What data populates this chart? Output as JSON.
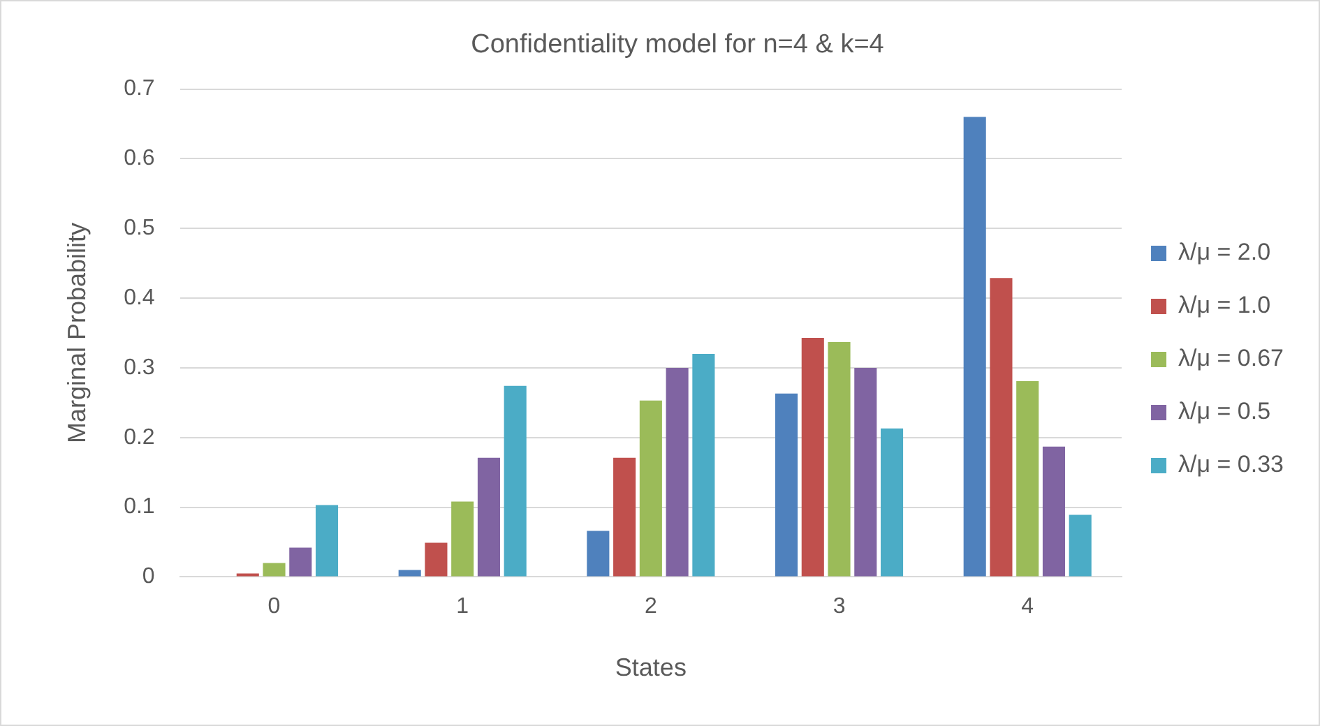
{
  "chart_data": {
    "type": "bar",
    "title": "Confidentiality model for n=4 & k=4",
    "xlabel": "States",
    "ylabel": "Marginal Probability",
    "categories": [
      "0",
      "1",
      "2",
      "3",
      "4"
    ],
    "series": [
      {
        "name": "λ/μ = 2.0",
        "color": "#4f81bd",
        "values": [
          0,
          0.01,
          0.066,
          0.263,
          0.66
        ]
      },
      {
        "name": "λ/μ = 1.0",
        "color": "#c0504d",
        "values": [
          0.005,
          0.049,
          0.171,
          0.343,
          0.429
        ]
      },
      {
        "name": "λ/μ = 0.67",
        "color": "#9bbb59",
        "values": [
          0.02,
          0.108,
          0.253,
          0.337,
          0.281
        ]
      },
      {
        "name": "λ/μ = 0.5",
        "color": "#8064a2",
        "values": [
          0.042,
          0.171,
          0.3,
          0.3,
          0.187
        ]
      },
      {
        "name": "λ/μ = 0.33",
        "color": "#4bacc6",
        "values": [
          0.103,
          0.274,
          0.32,
          0.213,
          0.089
        ]
      }
    ],
    "ylim": [
      0,
      0.7
    ],
    "yticks": [
      0,
      0.1,
      0.2,
      0.3,
      0.4,
      0.5,
      0.6,
      0.7
    ],
    "grid": "y",
    "legend": "right"
  }
}
